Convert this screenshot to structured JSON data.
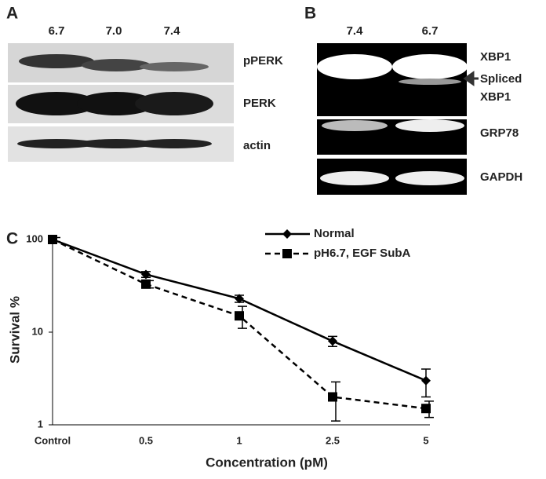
{
  "panel_a": {
    "label": "A",
    "lanes": [
      "6.7",
      "7.0",
      "7.4"
    ],
    "rows": [
      "pPERK",
      "PERK",
      "actin"
    ]
  },
  "panel_b": {
    "label": "B",
    "lanes": [
      "7.4",
      "6.7"
    ],
    "rows": [
      "XBP1",
      "Spliced",
      "XBP1",
      "GRP78",
      "GAPDH"
    ]
  },
  "chart_data": {
    "type": "line",
    "panel_label": "C",
    "x_label": "Concentration (pM)",
    "y_label": "Survival %",
    "categories": [
      "Control",
      "0.5",
      "1",
      "2.5",
      "5"
    ],
    "series": [
      {
        "name": "Normal",
        "color": "#000000",
        "marker": "diamond",
        "dash": false,
        "values": [
          100,
          42,
          23,
          8,
          3
        ],
        "errors": [
          5,
          3,
          2,
          1,
          1
        ]
      },
      {
        "name": "pH6.7, EGF SubA",
        "color": "#000000",
        "marker": "square",
        "dash": true,
        "values": [
          100,
          33,
          15,
          2,
          1.5
        ],
        "errors": [
          5,
          3,
          4,
          0.9,
          0.3
        ]
      }
    ],
    "ylim": [
      1,
      100
    ],
    "yticks": [
      1,
      10,
      100
    ],
    "yscale": "log",
    "grid": false,
    "legend": "upper right"
  }
}
